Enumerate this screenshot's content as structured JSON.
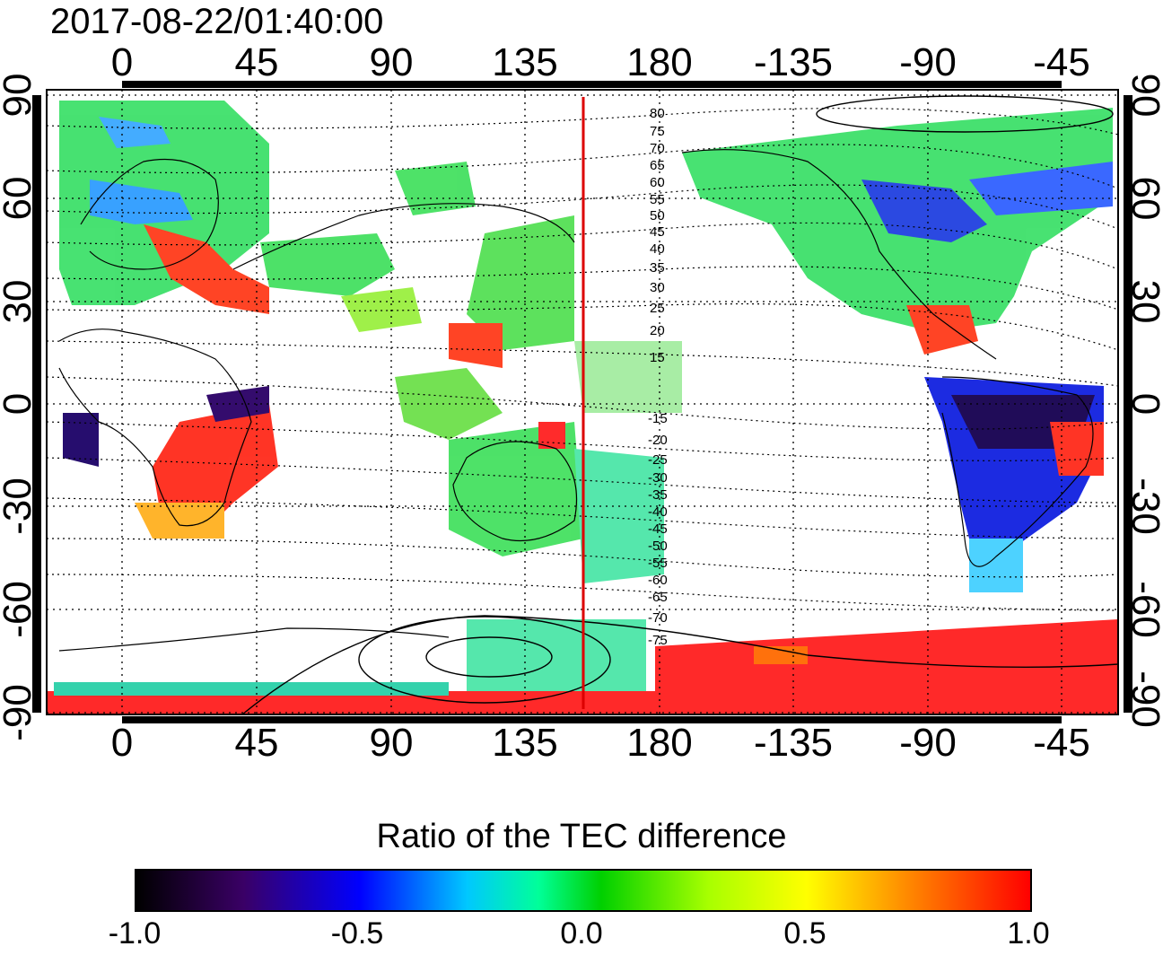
{
  "title": "2017-08-22/01:40:00",
  "lon_ticks": [
    "0",
    "45",
    "90",
    "135",
    "180",
    "-135",
    "-90",
    "-45"
  ],
  "lat_ticks": [
    "90",
    "60",
    "30",
    "0",
    "-30",
    "-60",
    "-90"
  ],
  "contour_labels_north": [
    "80",
    "75",
    "70",
    "65",
    "60",
    "55",
    "50",
    "45",
    "40",
    "35",
    "30",
    "25",
    "20",
    "15"
  ],
  "contour_labels_south": [
    "-15",
    "-20",
    "-25",
    "-30",
    "-35",
    "-40",
    "-45",
    "-50",
    "-55",
    "-60",
    "-65",
    "-70",
    "-75"
  ],
  "colorbar": {
    "title": "Ratio of the TEC difference",
    "ticks": [
      "-1.0",
      "-0.5",
      "0.0",
      "0.5",
      "1.0"
    ],
    "colors": [
      "#000000",
      "#0000ff",
      "#00ffff",
      "#00d000",
      "#ffff00",
      "#ff0000"
    ]
  },
  "accent": {
    "terminator_line": "#dd0000"
  }
}
